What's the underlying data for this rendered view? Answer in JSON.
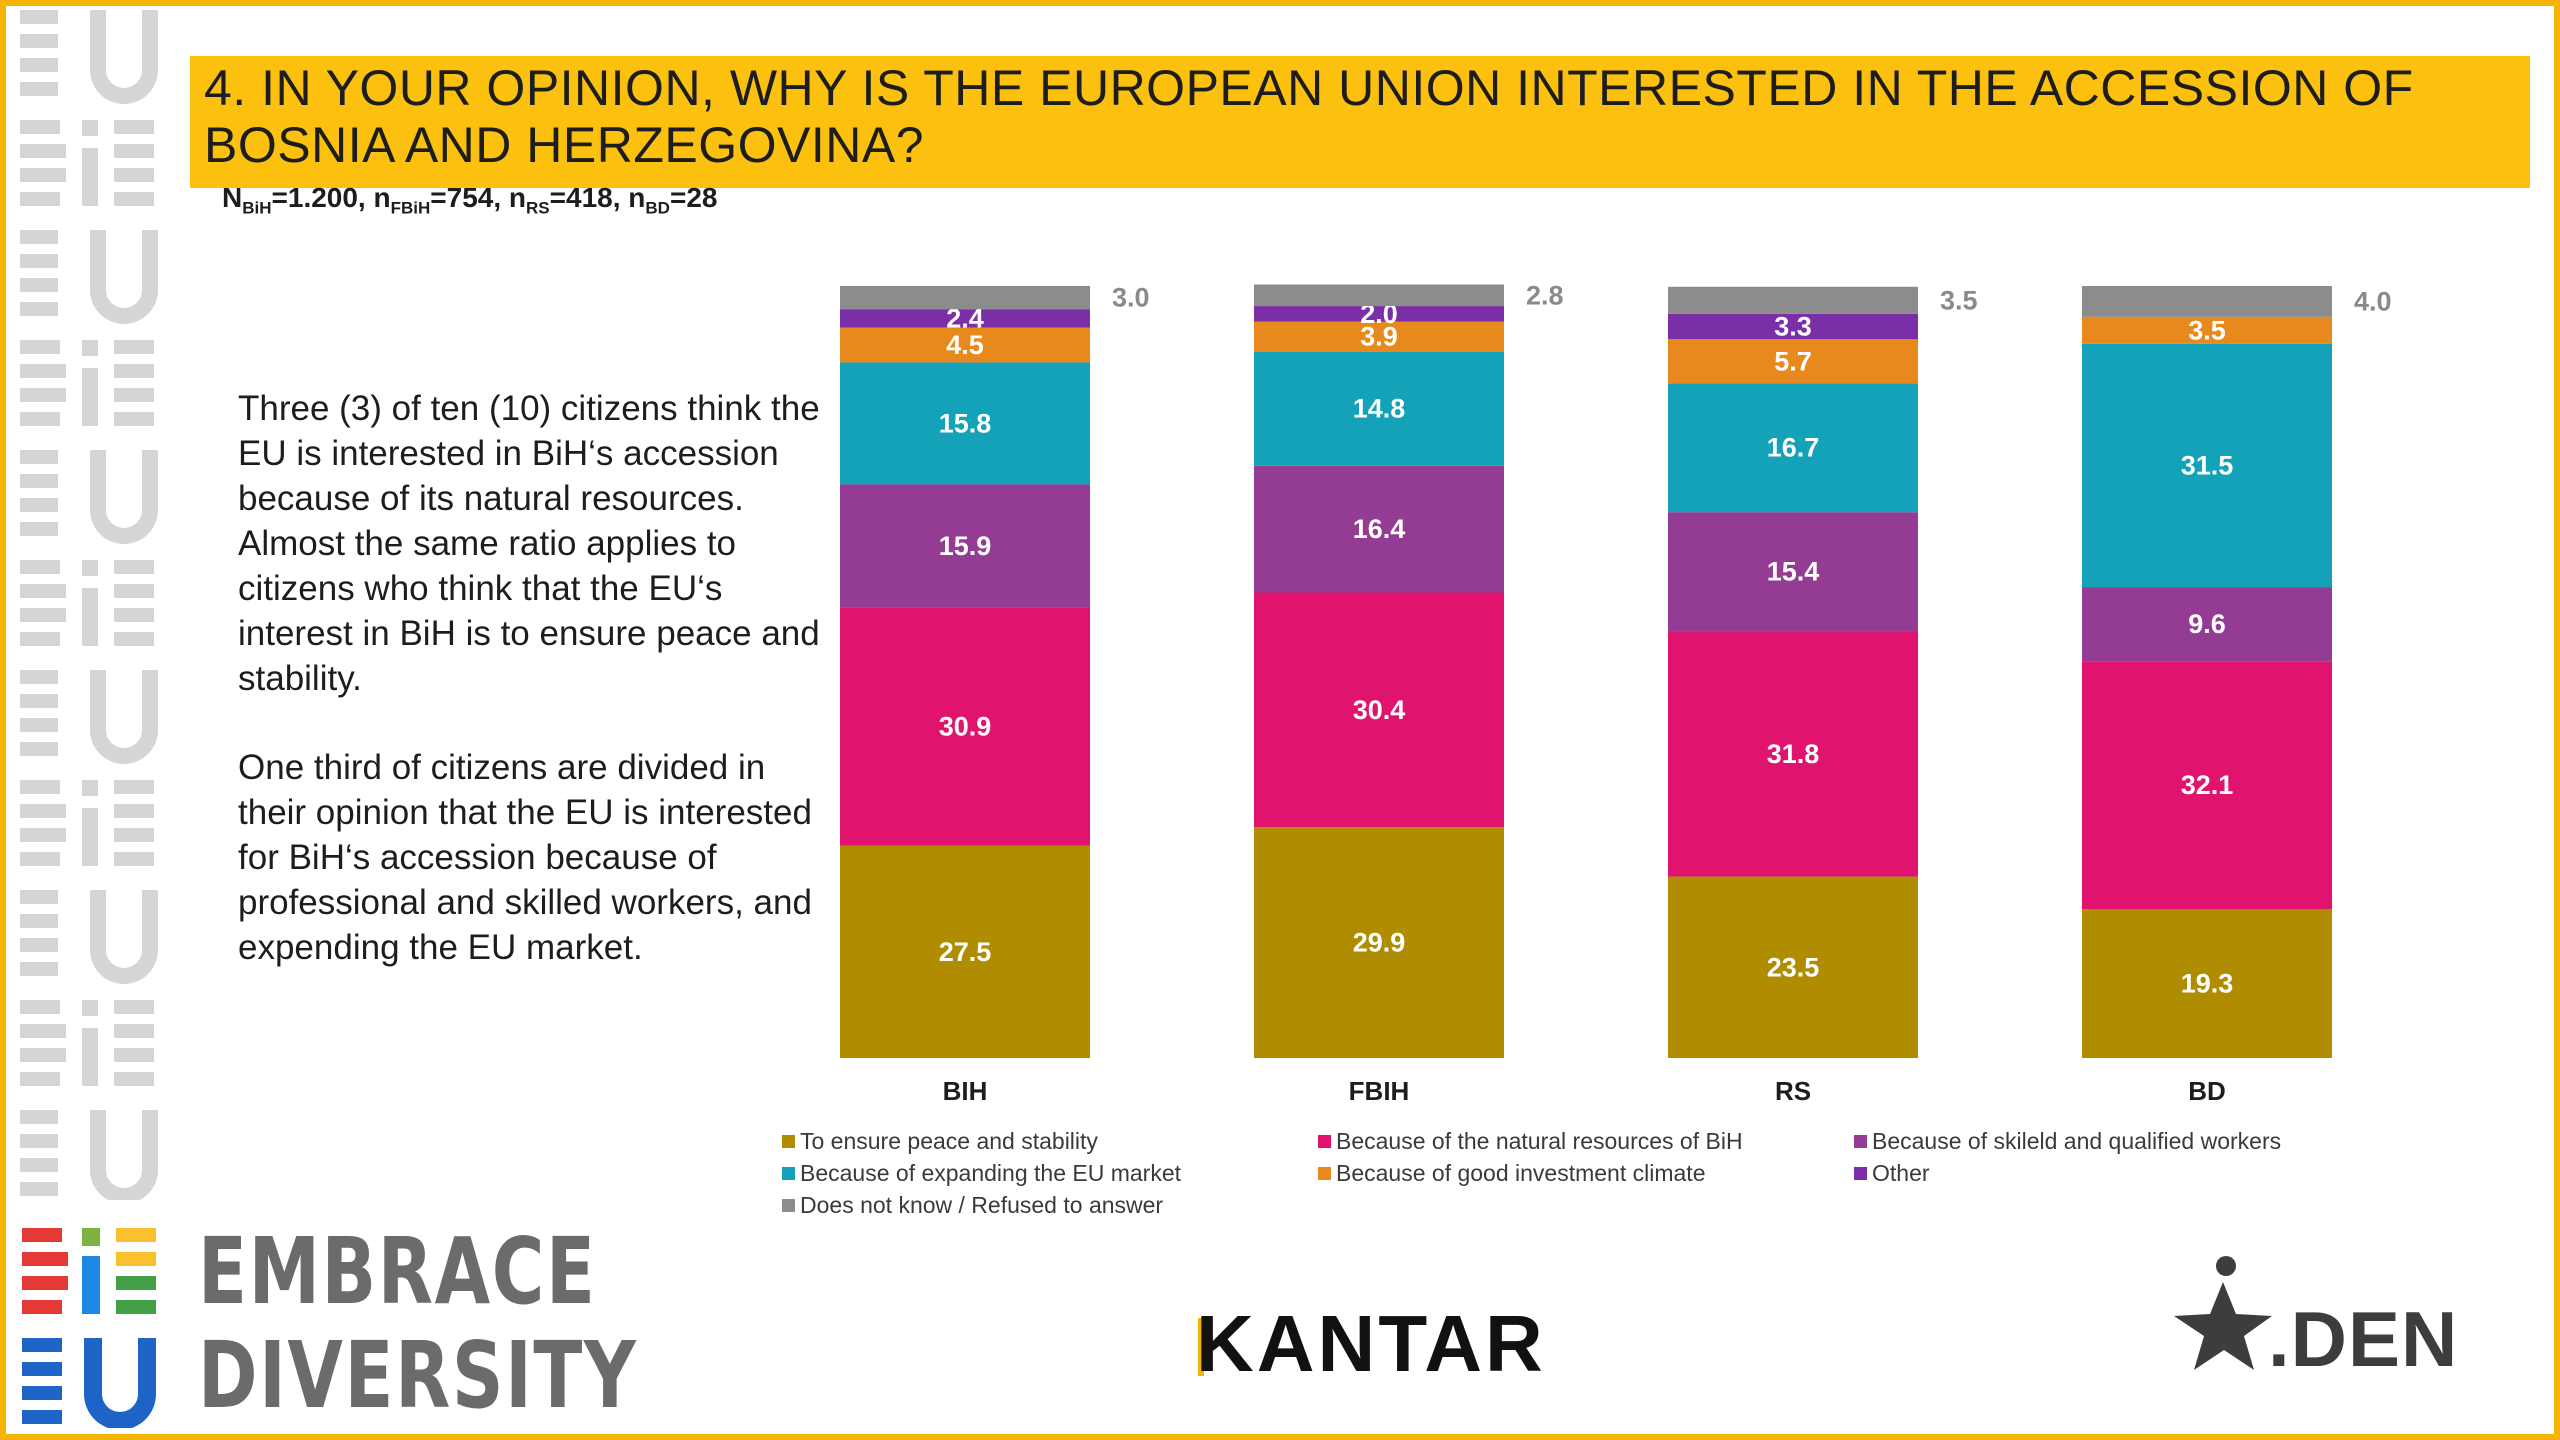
{
  "header": {
    "title": "4. IN YOUR OPINION, WHY IS THE EUROPEAN UNION INTERESTED IN THE ACCESSION OF BOSNIA AND HERZEGOVINA?",
    "sample": {
      "n_bih_prefix": "N",
      "n_bih_sub": "BiH",
      "n_bih_val": "=1.200, ",
      "n_fbih_prefix": "n",
      "n_fbih_sub": "FBiH",
      "n_fbih_val": "=754, ",
      "n_rs_prefix": "n",
      "n_rs_sub": "RS",
      "n_rs_val": "=418, ",
      "n_bd_prefix": "n",
      "n_bd_sub": "BD",
      "n_bd_val": "=28"
    }
  },
  "commentary": {
    "p1": "Three (3) of ten (10) citizens think the EU is interested in BiH‘s accession because of its natural resources. Almost the same ratio applies to citizens who think that the EU‘s interest in BiH is to ensure peace and stability.",
    "p2": "One third of citizens are divided in their opinion that the EU is interested for BiH‘s accession because of professional and skilled workers, and expending the EU market."
  },
  "colors": {
    "frame": "#f4b400",
    "title_bar": "#fcc10f",
    "peace": "#b08d00",
    "resources": "#e0136f",
    "workers": "#943c93",
    "market": "#14a2b8",
    "investment": "#e8891d",
    "other": "#7a2fa8",
    "dk": "#8c8c8c"
  },
  "chart_data": {
    "type": "bar",
    "stacked": true,
    "categories": [
      "BIH",
      "FBIH",
      "RS",
      "BD"
    ],
    "ylim": [
      0,
      100
    ],
    "legend_position": "bottom",
    "series": [
      {
        "name": "To ensure peace and stability",
        "color_key": "peace",
        "values": [
          27.5,
          29.9,
          23.5,
          19.3
        ]
      },
      {
        "name": "Because of the natural resources of BiH",
        "color_key": "resources",
        "values": [
          30.9,
          30.4,
          31.8,
          32.1
        ]
      },
      {
        "name": "Because of skileld and qualified workers",
        "color_key": "workers",
        "values": [
          15.9,
          16.4,
          15.4,
          9.6
        ]
      },
      {
        "name": "Because of expanding the EU market",
        "color_key": "market",
        "values": [
          15.8,
          14.8,
          16.7,
          31.5
        ]
      },
      {
        "name": "Because of good investment climate",
        "color_key": "investment",
        "values": [
          4.5,
          3.9,
          5.7,
          3.5
        ]
      },
      {
        "name": "Other",
        "color_key": "other",
        "values": [
          2.4,
          2.0,
          3.3,
          0
        ]
      },
      {
        "name": "Does not know / Refused to answer",
        "color_key": "dk",
        "values": [
          3.0,
          2.8,
          3.5,
          4.0
        ]
      }
    ]
  },
  "legend": {
    "items": [
      "To ensure peace and stability",
      "Because of the natural resources of BiH",
      "Because of skileld and qualified workers",
      "Because of expanding the EU market",
      "Because of good investment climate",
      "Other",
      "Does not know / Refused to answer"
    ]
  },
  "logos": {
    "embrace_line1": "EMBRACE",
    "embrace_line2": "DIVERSITY",
    "kantar": "KANTAR",
    "den": ".DEN"
  }
}
